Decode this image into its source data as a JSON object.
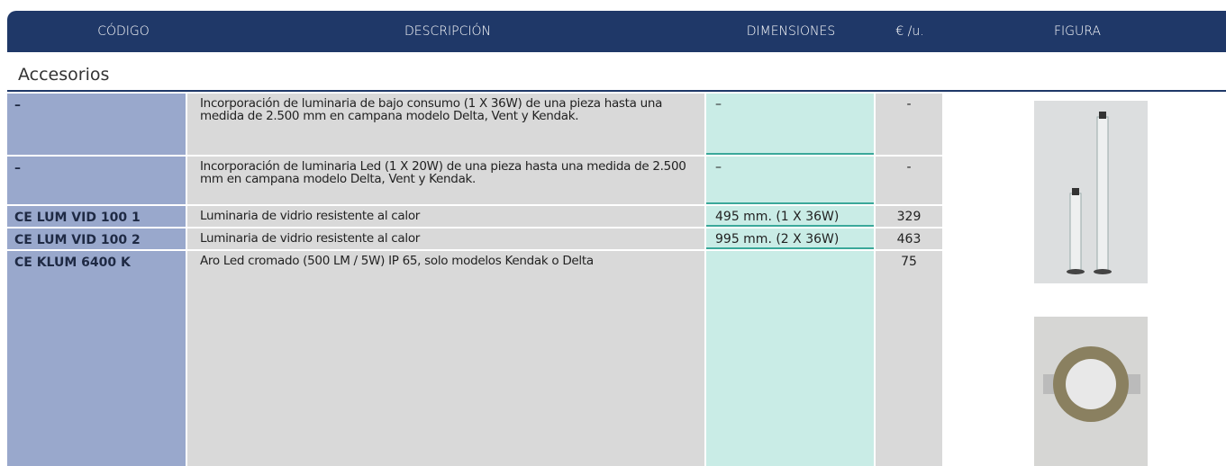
{
  "header": {
    "columns": [
      "CÓDIGO",
      "DESCRIPCIÓN",
      "DIMENSIONES",
      "€ /u.",
      "FIGURA"
    ]
  },
  "section": {
    "title": "Accesorios"
  },
  "table": {
    "rows": [
      {
        "code": "–",
        "description": "Incorporación de luminaria de bajo consumo (1 X 36W) de una pieza hasta una medida de 2.500 mm en campana modelo Delta, Vent y Kendak.",
        "dimensions": "–",
        "price": "-"
      },
      {
        "code": "–",
        "description": "Incorporación de luminaria Led (1 X 20W) de una pieza hasta una medida de 2.500 mm en campana modelo Delta, Vent y Kendak.",
        "dimensions": "–",
        "price": "-"
      },
      {
        "code": "CE LUM VID 100 1",
        "description": "Luminaria de vidrio resistente al calor",
        "dimensions": "495 mm. (1 X 36W)",
        "price": "329"
      },
      {
        "code": "CE LUM VID 100 2",
        "description": "Luminaria de vidrio resistente al calor",
        "dimensions": "995 mm. (2 X 36W)",
        "price": "463"
      },
      {
        "code": "CE KLUM 6400 K",
        "description": "Aro Led cromado (500 LM / 5W) IP 65, solo modelos Kendak o Delta",
        "price": "75"
      }
    ]
  }
}
